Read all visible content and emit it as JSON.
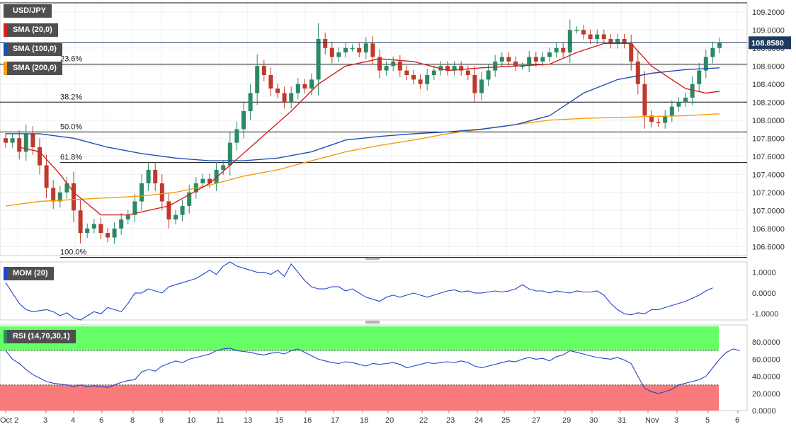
{
  "badges": {
    "symbol": "USD/JPY",
    "sma20": "SMA (20,0)",
    "sma100": "SMA (100,0)",
    "sma200": "SMA (200,0)",
    "mom": "MOM (20)",
    "rsi": "RSI (14,70,30,1)"
  },
  "colors": {
    "sma20": "#d22020",
    "sma100": "#1f4fb4",
    "sma200": "#f39c12",
    "bull": "#2a8a64",
    "bear": "#c0392b",
    "mom": "#2244cc",
    "rsi": "#2244cc",
    "overbought": "#66ff66",
    "oversold": "#f87a7a"
  },
  "price_label": "108.8580",
  "chart_data": [
    {
      "type": "candlestick",
      "title": "USD/JPY",
      "ylim": [
        106.5,
        109.3
      ],
      "y_ticks": [
        "109.2000",
        "109.0000",
        "108.8000",
        "108.6000",
        "108.4000",
        "108.2000",
        "108.0000",
        "107.8000",
        "107.6000",
        "107.4000",
        "107.2000",
        "107.0000",
        "106.8000",
        "106.6000"
      ],
      "x_ticks": [
        "Oct 2",
        "3",
        "4",
        "6",
        "8",
        "9",
        "10",
        "11",
        "13",
        "15",
        "16",
        "17",
        "18",
        "20",
        "22",
        "23",
        "24",
        "25",
        "27",
        "29",
        "30",
        "31",
        "Nov",
        "3",
        "5",
        "6"
      ],
      "last_price": 108.858,
      "fibonacci": [
        {
          "label": "23.6%",
          "value": 108.62
        },
        {
          "label": "38.2%",
          "value": 108.2
        },
        {
          "label": "50.0%",
          "value": 107.87
        },
        {
          "label": "61.8%",
          "value": 107.53
        },
        {
          "label": "100.0%",
          "value": 106.48
        }
      ],
      "close_series": [
        107.75,
        107.8,
        107.65,
        107.85,
        107.7,
        107.5,
        107.25,
        107.1,
        107.2,
        107.3,
        107.0,
        106.75,
        106.8,
        106.85,
        106.75,
        106.7,
        106.8,
        106.9,
        106.95,
        107.1,
        107.3,
        107.45,
        107.3,
        107.1,
        106.9,
        106.95,
        107.05,
        107.2,
        107.3,
        107.35,
        107.3,
        107.45,
        107.5,
        107.75,
        107.9,
        108.1,
        108.3,
        108.6,
        108.5,
        108.35,
        108.3,
        108.2,
        108.3,
        108.4,
        108.35,
        108.45,
        108.9,
        108.8,
        108.7,
        108.75,
        108.8,
        108.8,
        108.75,
        108.85,
        108.7,
        108.55,
        108.6,
        108.65,
        108.55,
        108.5,
        108.45,
        108.4,
        108.5,
        108.55,
        108.6,
        108.55,
        108.6,
        108.55,
        108.5,
        108.3,
        108.45,
        108.55,
        108.65,
        108.7,
        108.65,
        108.6,
        108.6,
        108.7,
        108.65,
        108.7,
        108.75,
        108.8,
        108.75,
        109.0,
        109.0,
        108.95,
        108.9,
        108.95,
        108.9,
        108.85,
        108.9,
        108.85,
        108.65,
        108.4,
        108.05,
        107.98,
        107.97,
        108.05,
        108.15,
        108.2,
        108.25,
        108.4,
        108.55,
        108.7,
        108.8,
        108.858
      ],
      "sma20_points": [
        [
          2,
          107.7
        ],
        [
          5,
          107.65
        ],
        [
          8,
          107.4
        ],
        [
          10,
          107.2
        ],
        [
          14,
          106.95
        ],
        [
          18,
          106.95
        ],
        [
          24,
          107.05
        ],
        [
          30,
          107.3
        ],
        [
          36,
          107.7
        ],
        [
          42,
          108.1
        ],
        [
          46,
          108.4
        ],
        [
          50,
          108.6
        ],
        [
          55,
          108.68
        ],
        [
          60,
          108.65
        ],
        [
          65,
          108.55
        ],
        [
          70,
          108.58
        ],
        [
          75,
          108.6
        ],
        [
          80,
          108.62
        ],
        [
          84,
          108.75
        ],
        [
          88,
          108.85
        ],
        [
          92,
          108.85
        ],
        [
          95,
          108.6
        ],
        [
          100,
          108.35
        ],
        [
          103,
          108.3
        ],
        [
          105,
          108.32
        ]
      ],
      "sma100_points": [
        [
          0,
          107.85
        ],
        [
          5,
          107.85
        ],
        [
          10,
          107.8
        ],
        [
          15,
          107.7
        ],
        [
          20,
          107.63
        ],
        [
          25,
          107.58
        ],
        [
          30,
          107.55
        ],
        [
          35,
          107.55
        ],
        [
          40,
          107.58
        ],
        [
          45,
          107.65
        ],
        [
          50,
          107.78
        ],
        [
          55,
          107.82
        ],
        [
          60,
          107.85
        ],
        [
          65,
          107.87
        ],
        [
          70,
          107.9
        ],
        [
          75,
          107.95
        ],
        [
          80,
          108.05
        ],
        [
          85,
          108.3
        ],
        [
          90,
          108.45
        ],
        [
          95,
          108.52
        ],
        [
          100,
          108.56
        ],
        [
          105,
          108.58
        ]
      ],
      "sma200_points": [
        [
          0,
          107.05
        ],
        [
          5,
          107.1
        ],
        [
          10,
          107.12
        ],
        [
          15,
          107.14
        ],
        [
          20,
          107.16
        ],
        [
          25,
          107.2
        ],
        [
          30,
          107.28
        ],
        [
          35,
          107.38
        ],
        [
          40,
          107.45
        ],
        [
          45,
          107.55
        ],
        [
          50,
          107.65
        ],
        [
          55,
          107.72
        ],
        [
          60,
          107.78
        ],
        [
          65,
          107.85
        ],
        [
          70,
          107.9
        ],
        [
          75,
          107.95
        ],
        [
          80,
          108.0
        ],
        [
          85,
          108.02
        ],
        [
          90,
          108.03
        ],
        [
          95,
          108.04
        ],
        [
          100,
          108.05
        ],
        [
          105,
          108.07
        ]
      ]
    },
    {
      "type": "line",
      "title": "MOM (20)",
      "ylim": [
        -1.3,
        1.5
      ],
      "y_ticks": [
        "1.0000",
        "0.0000",
        "-1.0000"
      ],
      "values": [
        0.5,
        0.0,
        -0.5,
        -0.8,
        -0.9,
        -0.85,
        -0.8,
        -0.9,
        -1.1,
        -0.95,
        -1.2,
        -1.3,
        -1.1,
        -0.9,
        -1.0,
        -0.7,
        -0.8,
        -0.9,
        -0.5,
        0.0,
        0.0,
        0.2,
        0.1,
        0.0,
        0.3,
        0.4,
        0.5,
        0.6,
        0.7,
        0.9,
        1.1,
        0.9,
        1.3,
        1.5,
        1.3,
        1.2,
        1.1,
        1.0,
        1.0,
        0.9,
        1.1,
        0.8,
        1.4,
        1.0,
        0.6,
        0.3,
        0.2,
        0.2,
        0.3,
        0.3,
        0.1,
        0.2,
        0.0,
        -0.2,
        -0.3,
        -0.4,
        -0.2,
        -0.1,
        -0.2,
        -0.1,
        0.0,
        -0.1,
        -0.2,
        -0.1,
        0.0,
        0.1,
        0.15,
        0.05,
        0.1,
        0.0,
        0.0,
        0.05,
        0.1,
        0.05,
        0.1,
        0.2,
        0.4,
        0.2,
        0.1,
        0.1,
        0.0,
        0.1,
        0.05,
        0.0,
        0.1,
        0.05,
        0.05,
        0.1,
        -0.1,
        -0.5,
        -0.8,
        -1.0,
        -1.05,
        -0.95,
        -1.0,
        -0.8,
        -0.8,
        -0.7,
        -0.6,
        -0.5,
        -0.4,
        -0.25,
        -0.1,
        0.1,
        0.25
      ]
    },
    {
      "type": "line",
      "title": "RSI (14,70,30,1)",
      "ylim": [
        0,
        100
      ],
      "y_ticks": [
        "80.0000",
        "60.0000",
        "40.0000",
        "20.0000",
        "0.0000"
      ],
      "overbought": 70,
      "oversold": 30,
      "values": [
        70,
        60,
        55,
        48,
        42,
        38,
        34,
        32,
        31,
        30,
        28,
        30,
        28,
        29,
        28,
        27,
        30,
        33,
        35,
        36,
        45,
        48,
        46,
        52,
        55,
        58,
        56,
        60,
        62,
        64,
        66,
        70,
        72,
        73,
        70,
        69,
        68,
        66,
        65,
        67,
        68,
        66,
        70,
        72,
        68,
        64,
        60,
        58,
        56,
        55,
        57,
        56,
        54,
        52,
        55,
        54,
        55,
        56,
        54,
        50,
        52,
        54,
        56,
        55,
        56,
        57,
        56,
        58,
        56,
        52,
        50,
        52,
        54,
        56,
        58,
        57,
        60,
        62,
        60,
        61,
        58,
        63,
        65,
        70,
        68,
        66,
        64,
        62,
        61,
        60,
        62,
        59,
        55,
        40,
        26,
        22,
        20,
        22,
        25,
        30,
        32,
        34,
        36,
        40,
        50,
        60,
        68,
        72,
        70
      ]
    }
  ]
}
